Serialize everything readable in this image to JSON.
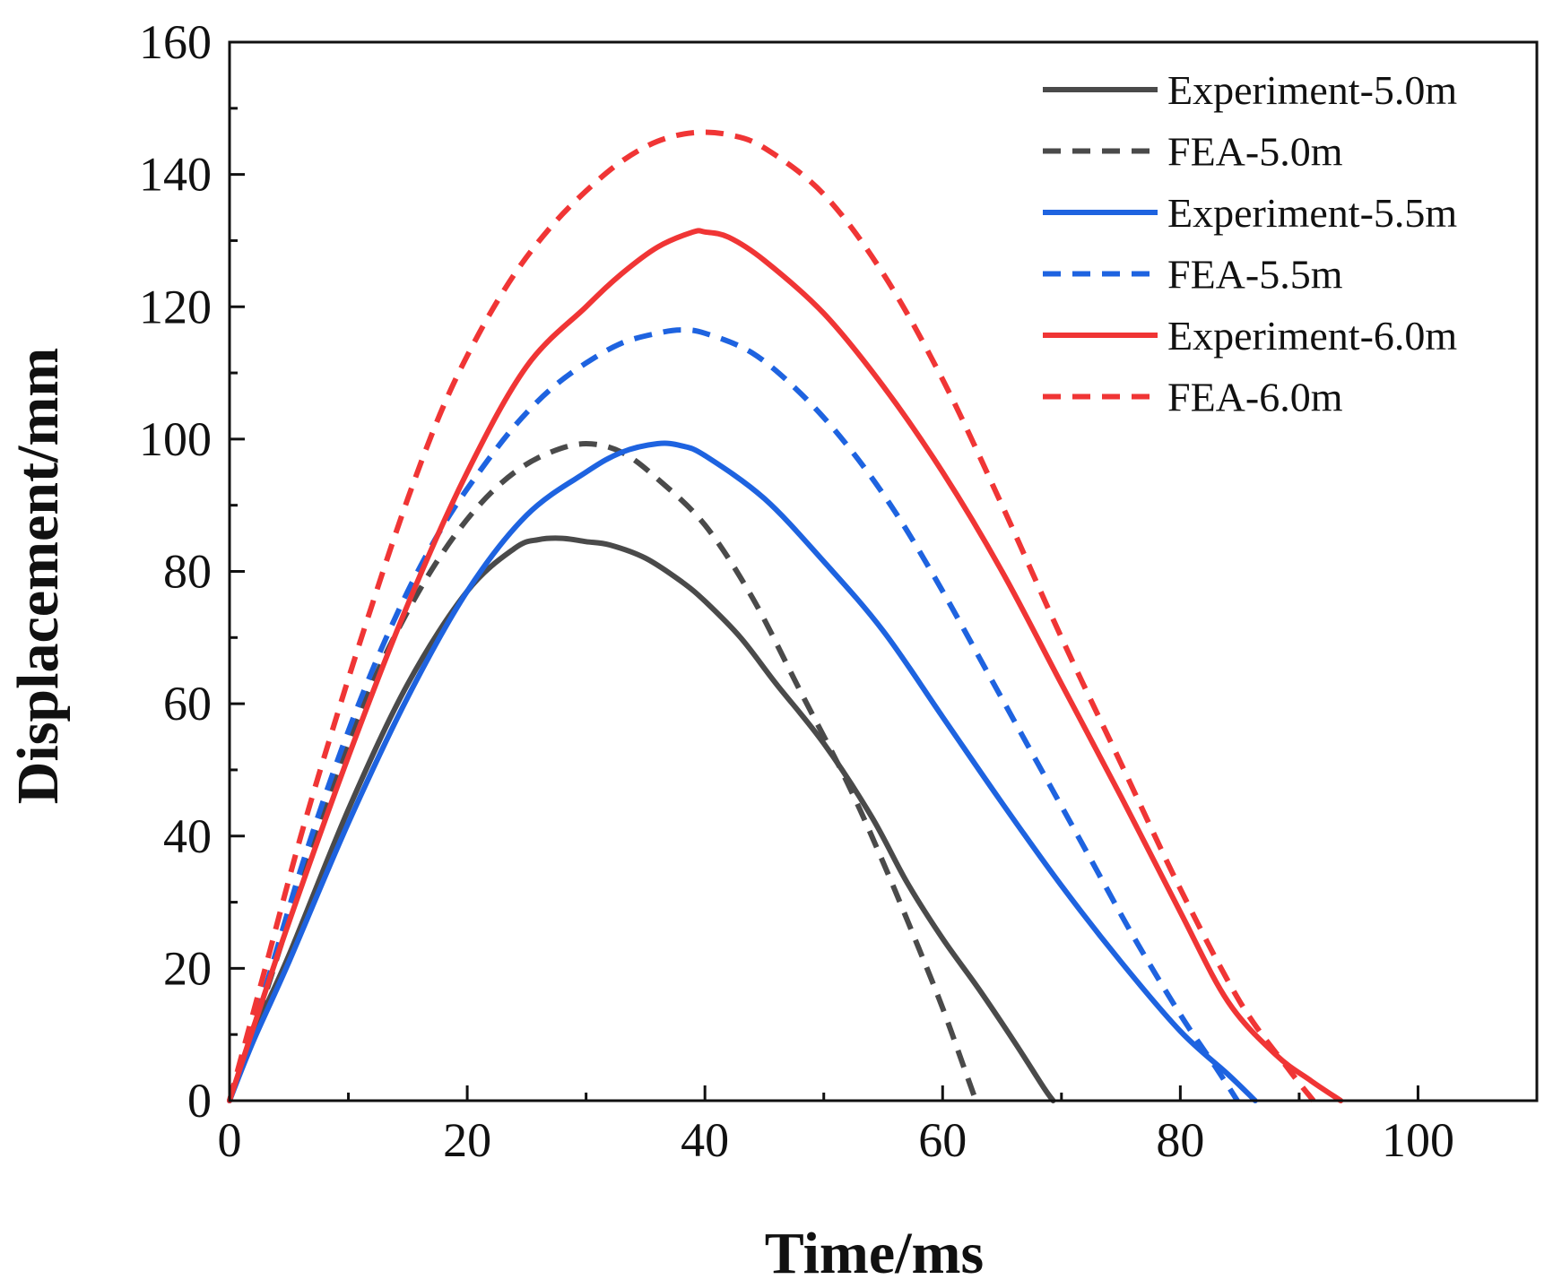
{
  "chart_data": {
    "type": "line",
    "title": "",
    "xlabel": "Time/ms",
    "ylabel": "Displacement/mm",
    "xlim": [
      0,
      110
    ],
    "ylim": [
      0,
      160
    ],
    "xticks": [
      0,
      20,
      40,
      60,
      80,
      100
    ],
    "yticks": [
      0,
      20,
      40,
      60,
      80,
      100,
      120,
      140,
      160
    ],
    "x_minor_step": 10,
    "y_minor_step": 10,
    "grid": false,
    "legend_position": "top-right",
    "series": [
      {
        "name": "Experiment-5.0m",
        "color": "#4a4a4a",
        "style": "solid",
        "points": [
          [
            0,
            0
          ],
          [
            2,
            10
          ],
          [
            5,
            22
          ],
          [
            10,
            44
          ],
          [
            15,
            63
          ],
          [
            20,
            77
          ],
          [
            24,
            83.5
          ],
          [
            26,
            84.8
          ],
          [
            28,
            85
          ],
          [
            30,
            84.5
          ],
          [
            32,
            84
          ],
          [
            35,
            82
          ],
          [
            38,
            78.5
          ],
          [
            40,
            75.5
          ],
          [
            43,
            70
          ],
          [
            46,
            63
          ],
          [
            50,
            54
          ],
          [
            54,
            43
          ],
          [
            57,
            33
          ],
          [
            60,
            24.5
          ],
          [
            63,
            17
          ],
          [
            66,
            9
          ],
          [
            68.5,
            2
          ],
          [
            69.3,
            0
          ]
        ]
      },
      {
        "name": "FEA-5.0m",
        "color": "#4a4a4a",
        "style": "dashed",
        "points": [
          [
            0,
            0
          ],
          [
            3,
            16
          ],
          [
            6,
            33
          ],
          [
            9,
            49
          ],
          [
            12,
            63
          ],
          [
            15,
            74
          ],
          [
            18,
            83
          ],
          [
            21,
            90
          ],
          [
            24,
            95
          ],
          [
            27,
            98
          ],
          [
            30,
            99.3
          ],
          [
            33,
            98
          ],
          [
            36,
            94
          ],
          [
            40,
            87
          ],
          [
            44,
            76
          ],
          [
            48,
            62
          ],
          [
            52,
            48
          ],
          [
            55,
            36
          ],
          [
            58,
            23
          ],
          [
            60,
            14
          ],
          [
            62,
            4
          ],
          [
            62.8,
            0
          ]
        ]
      },
      {
        "name": "Experiment-5.5m",
        "color": "#1e63e0",
        "style": "solid",
        "points": [
          [
            0,
            0
          ],
          [
            2,
            9
          ],
          [
            5,
            21
          ],
          [
            10,
            42
          ],
          [
            15,
            61
          ],
          [
            20,
            77
          ],
          [
            25,
            88.5
          ],
          [
            30,
            95
          ],
          [
            33,
            98
          ],
          [
            36,
            99.3
          ],
          [
            38,
            99
          ],
          [
            40,
            97.5
          ],
          [
            45,
            91
          ],
          [
            50,
            81.5
          ],
          [
            55,
            71
          ],
          [
            60,
            58
          ],
          [
            65,
            45
          ],
          [
            70,
            32.5
          ],
          [
            75,
            21
          ],
          [
            80,
            10.5
          ],
          [
            84,
            4
          ],
          [
            86.3,
            0
          ]
        ]
      },
      {
        "name": "FEA-5.5m",
        "color": "#1e63e0",
        "style": "dashed",
        "points": [
          [
            0,
            0
          ],
          [
            3,
            17
          ],
          [
            6,
            35
          ],
          [
            9,
            51
          ],
          [
            12,
            65
          ],
          [
            15,
            77
          ],
          [
            18,
            87
          ],
          [
            21,
            95
          ],
          [
            24,
            102
          ],
          [
            27,
            107.5
          ],
          [
            30,
            111.5
          ],
          [
            33,
            114.5
          ],
          [
            36,
            116
          ],
          [
            38,
            116.5
          ],
          [
            40,
            116
          ],
          [
            44,
            113
          ],
          [
            48,
            107
          ],
          [
            52,
            99
          ],
          [
            56,
            89
          ],
          [
            60,
            77
          ],
          [
            64,
            64
          ],
          [
            68,
            51
          ],
          [
            72,
            38
          ],
          [
            76,
            25
          ],
          [
            80,
            13
          ],
          [
            83,
            5
          ],
          [
            84.8,
            0
          ]
        ]
      },
      {
        "name": "Experiment-6.0m",
        "color": "#f03535",
        "style": "solid",
        "points": [
          [
            0,
            0
          ],
          [
            2,
            11
          ],
          [
            5,
            27
          ],
          [
            10,
            52
          ],
          [
            15,
            75
          ],
          [
            20,
            95
          ],
          [
            25,
            111
          ],
          [
            30,
            120
          ],
          [
            33,
            125
          ],
          [
            36,
            129
          ],
          [
            39,
            131.3
          ],
          [
            40,
            131.3
          ],
          [
            42,
            130.5
          ],
          [
            45,
            127
          ],
          [
            50,
            119
          ],
          [
            55,
            108
          ],
          [
            60,
            95
          ],
          [
            65,
            80
          ],
          [
            70,
            63
          ],
          [
            75,
            46
          ],
          [
            80,
            28.5
          ],
          [
            84,
            15
          ],
          [
            88,
            7
          ],
          [
            91,
            3
          ],
          [
            93.5,
            0
          ]
        ]
      },
      {
        "name": "FEA-6.0m",
        "color": "#f03535",
        "style": "dashed",
        "points": [
          [
            0,
            0
          ],
          [
            3,
            20
          ],
          [
            6,
            40
          ],
          [
            9,
            58
          ],
          [
            12,
            75
          ],
          [
            15,
            91
          ],
          [
            18,
            105
          ],
          [
            21,
            116
          ],
          [
            24,
            125
          ],
          [
            27,
            132
          ],
          [
            30,
            137.5
          ],
          [
            33,
            142
          ],
          [
            36,
            145
          ],
          [
            39,
            146.3
          ],
          [
            42,
            146
          ],
          [
            45,
            144
          ],
          [
            50,
            137
          ],
          [
            55,
            125
          ],
          [
            60,
            109
          ],
          [
            65,
            90
          ],
          [
            70,
            70
          ],
          [
            75,
            51
          ],
          [
            80,
            32
          ],
          [
            85,
            15
          ],
          [
            89,
            5
          ],
          [
            91.2,
            0
          ]
        ]
      }
    ]
  }
}
